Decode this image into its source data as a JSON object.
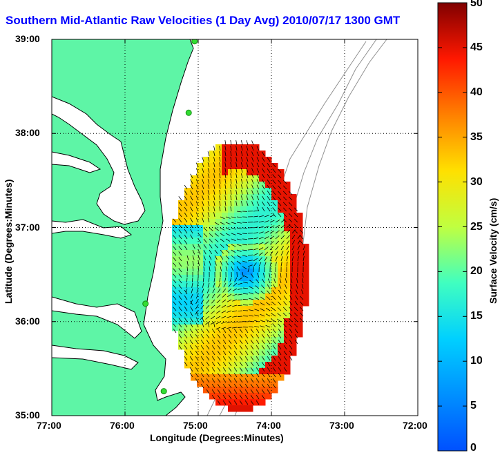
{
  "title": "Southern Mid-Atlantic Raw Velocities (1 Day Avg) 2010/07/17 1300 GMT",
  "axes": {
    "xlabel": "Longitude (Degrees:Minutes)",
    "ylabel": "Latitude (Degrees:Minutes)",
    "xticks": [
      "77:00",
      "76:00",
      "75:00",
      "74:00",
      "73:00",
      "72:00"
    ],
    "yticks": [
      "39:00",
      "38:00",
      "37:00",
      "36:00",
      "35:00"
    ],
    "lon_range": [
      -77,
      -72
    ],
    "lat_range": [
      35,
      39
    ],
    "grid": "dotted"
  },
  "colorbar": {
    "label": "Surface Velocity (cm/s)",
    "ticks": [
      "50",
      "45",
      "40",
      "35",
      "30",
      "25",
      "20",
      "15",
      "10",
      "5",
      "0"
    ],
    "range": [
      0,
      50
    ],
    "colormap": "jet"
  },
  "colors": {
    "land": "#5ef5a6",
    "coast": "#000000",
    "bathymetry": "#909090",
    "title": "#0000ff",
    "station": "#33dd33"
  },
  "chart_data": {
    "type": "heatmap",
    "title": "Southern Mid-Atlantic Raw Velocities (1 Day Avg) 2010/07/17 1300 GMT",
    "xlabel": "Longitude (Degrees:Minutes)",
    "ylabel": "Latitude (Degrees:Minutes)",
    "value_label": "Surface Velocity (cm/s)",
    "value_range": [
      0,
      50
    ],
    "xlim": [
      -77,
      -72
    ],
    "ylim": [
      35,
      39
    ],
    "features": {
      "eddy_center": {
        "lon": -74.35,
        "lat": 36.52,
        "speed": 5
      },
      "shelf_edge_jet_speed": 45,
      "typical_interior_speed": 25
    },
    "hf_radar_stations": [
      {
        "lon": -75.05,
        "lat": 38.98
      },
      {
        "lon": -75.13,
        "lat": 38.22
      },
      {
        "lon": -75.72,
        "lat": 36.19
      },
      {
        "lon": -75.47,
        "lat": 35.26
      }
    ]
  }
}
